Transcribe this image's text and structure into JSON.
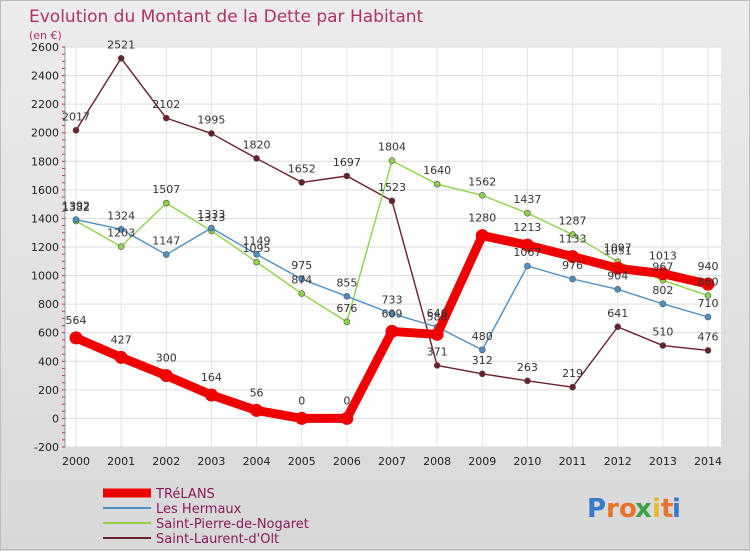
{
  "chart_data": {
    "type": "line",
    "title": "Evolution du Montant de la Dette par Habitant",
    "subtitle": "(en €)",
    "x": [
      "2000",
      "2001",
      "2002",
      "2003",
      "2004",
      "2005",
      "2006",
      "2007",
      "2008",
      "2009",
      "2010",
      "2011",
      "2012",
      "2013",
      "2014"
    ],
    "ylim": [
      -200,
      2600
    ],
    "yticks": [
      -200,
      0,
      200,
      400,
      600,
      800,
      1000,
      1200,
      1400,
      1600,
      1800,
      2000,
      2200,
      2400,
      2600
    ],
    "grid": true,
    "legend_position": "bottom-left",
    "series": [
      {
        "name": "Saint-Laurent-d'Olt",
        "color": "#6b1f2a",
        "values": [
          2017,
          2521,
          2102,
          1995,
          1820,
          1652,
          1697,
          1523,
          371,
          312,
          263,
          219,
          641,
          510,
          476
        ]
      },
      {
        "name": "Saint-Pierre-de-Nogaret",
        "color": "#8fd24a",
        "values": [
          1382,
          1203,
          1507,
          1313,
          1095,
          874,
          676,
          1804,
          1640,
          1562,
          1437,
          1287,
          1097,
          967,
          860
        ]
      },
      {
        "name": "Les Hermaux",
        "color": "#4b8fc4",
        "values": [
          1392,
          1324,
          1147,
          1333,
          1149,
          975,
          855,
          733,
          640,
          480,
          1067,
          976,
          904,
          802,
          710
        ]
      },
      {
        "name": "TRéLANS",
        "color": "#ee0000",
        "values": [
          564,
          427,
          300,
          164,
          56,
          0,
          0,
          609,
          588,
          1280,
          1213,
          1133,
          1051,
          1013,
          940
        ]
      }
    ],
    "legend": [
      "TRéLANS",
      "Les Hermaux",
      "Saint-Pierre-de-Nogaret",
      "Saint-Laurent-d'Olt"
    ]
  },
  "legend_colors": {
    "TRéLANS": "#ee0000",
    "Les Hermaux": "#4b8fc4",
    "Saint-Pierre-de-Nogaret": "#8fd24a",
    "Saint-Laurent-d'Olt": "#6b1f2a"
  },
  "legend_text_color": "#8a1a5a",
  "logo": {
    "text": "Proxiti",
    "letters": [
      "P",
      "r",
      "o",
      "x",
      "i",
      "t",
      "i"
    ],
    "colors": [
      "#3a78c8",
      "#e8732a",
      "#e8732a",
      "#3aa14a",
      "#e8b830",
      "#e8732a",
      "#3a78c8"
    ]
  }
}
